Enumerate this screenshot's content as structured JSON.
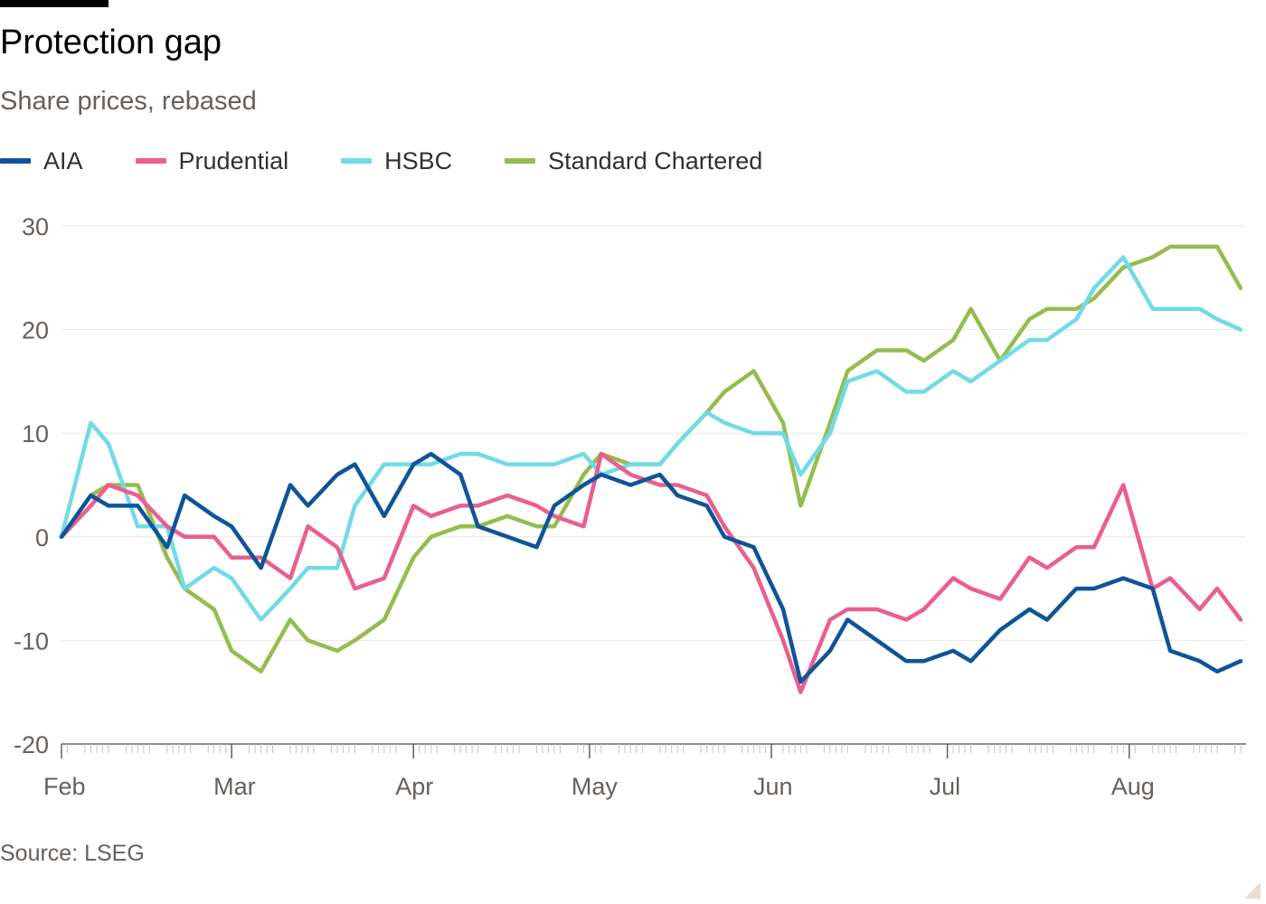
{
  "title": "Protection gap",
  "subtitle": "Share prices, rebased",
  "source": "Source: LSEG",
  "chart_data": {
    "type": "line",
    "x": [
      "2024-02-01",
      "2024-02-06",
      "2024-02-09",
      "2024-02-14",
      "2024-02-19",
      "2024-02-22",
      "2024-02-27",
      "2024-03-01",
      "2024-03-06",
      "2024-03-11",
      "2024-03-14",
      "2024-03-19",
      "2024-03-22",
      "2024-03-27",
      "2024-04-01",
      "2024-04-04",
      "2024-04-09",
      "2024-04-12",
      "2024-04-17",
      "2024-04-22",
      "2024-04-25",
      "2024-04-30",
      "2024-05-03",
      "2024-05-08",
      "2024-05-13",
      "2024-05-16",
      "2024-05-21",
      "2024-05-24",
      "2024-05-29",
      "2024-06-03",
      "2024-06-06",
      "2024-06-11",
      "2024-06-14",
      "2024-06-19",
      "2024-06-24",
      "2024-06-27",
      "2024-07-02",
      "2024-07-05",
      "2024-07-10",
      "2024-07-15",
      "2024-07-18",
      "2024-07-23",
      "2024-07-26",
      "2024-07-31",
      "2024-08-05",
      "2024-08-08",
      "2024-08-13",
      "2024-08-16",
      "2024-08-20"
    ],
    "series": [
      {
        "name": "AIA",
        "values": [
          0,
          4,
          3,
          3,
          -1,
          4,
          2,
          1,
          -3,
          5,
          3,
          6,
          7,
          2,
          7,
          8,
          6,
          1,
          0,
          -1,
          3,
          5,
          6,
          5,
          6,
          4,
          3,
          0,
          -1,
          -7,
          -14,
          -11,
          -8,
          -10,
          -12,
          -12,
          -11,
          -12,
          -9,
          -7,
          -8,
          -5,
          -5,
          -4,
          -5,
          -11,
          -12,
          -13,
          -12
        ]
      },
      {
        "name": "Prudential",
        "values": [
          0,
          3,
          5,
          4,
          1,
          0,
          0,
          -2,
          -2,
          -4,
          1,
          -1,
          -5,
          -4,
          3,
          2,
          3,
          3,
          4,
          3,
          2,
          1,
          8,
          6,
          5,
          5,
          4,
          1,
          -3,
          -10,
          -15,
          -8,
          -7,
          -7,
          -8,
          -7,
          -4,
          -5,
          -6,
          -2,
          -3,
          -1,
          -1,
          5,
          -5,
          -4,
          -7,
          -5,
          -8
        ]
      },
      {
        "name": "HSBC",
        "values": [
          0,
          11,
          9,
          1,
          1,
          -5,
          -3,
          -4,
          -8,
          -5,
          -3,
          -3,
          3,
          7,
          7,
          7,
          8,
          8,
          7,
          7,
          7,
          8,
          6,
          7,
          7,
          9,
          12,
          11,
          10,
          10,
          6,
          10,
          15,
          16,
          14,
          14,
          16,
          15,
          17,
          19,
          19,
          21,
          24,
          27,
          22,
          22,
          22,
          21,
          20
        ]
      },
      {
        "name": "Standard Chartered",
        "values": [
          0,
          4,
          5,
          5,
          -2,
          -5,
          -7,
          -11,
          -13,
          -8,
          -10,
          -11,
          -10,
          -8,
          -2,
          0,
          1,
          1,
          2,
          1,
          1,
          6,
          8,
          7,
          7,
          9,
          12,
          14,
          16,
          11,
          3,
          11,
          16,
          18,
          18,
          17,
          19,
          22,
          17,
          21,
          22,
          22,
          23,
          26,
          27,
          28,
          28,
          28,
          24
        ]
      }
    ],
    "y_ticks": [
      30,
      20,
      10,
      0,
      -10,
      -20
    ],
    "ylim": [
      -20,
      30
    ],
    "x_tick_labels": [
      "Feb",
      "Mar",
      "Apr",
      "May",
      "Jun",
      "Jul",
      "Aug"
    ],
    "colors": {
      "AIA": "#0f5499",
      "Prudential": "#eb5e8d",
      "HSBC": "#70dbe6",
      "Standard Chartered": "#96bc4f",
      "grid": "#ebe6e1",
      "axis": "#66605c"
    },
    "legend_position": "top-left",
    "grid": true
  }
}
